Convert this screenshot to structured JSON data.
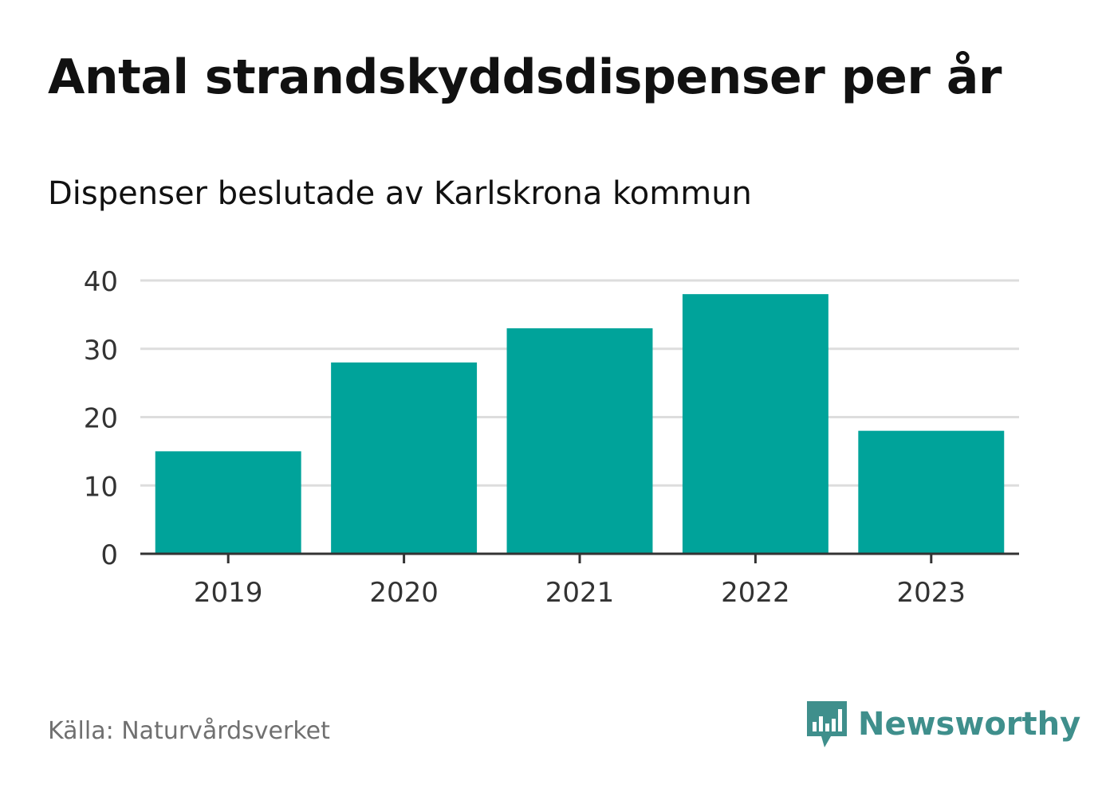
{
  "header": {
    "title": "Antal strandskyddsdispenser per år",
    "subtitle": "Dispenser beslutade av Karlskrona kommun"
  },
  "footer": {
    "source": "Källa: Naturvårdsverket",
    "brand_name": "Newsworthy",
    "brand_icon": "newsworthy-logo-icon",
    "brand_color": "#3f8f8c"
  },
  "colors": {
    "bar": "#00a39a",
    "grid": "#dddddd",
    "axis": "#333333",
    "tick_text": "#333333"
  },
  "chart_data": {
    "type": "bar",
    "title": "Antal strandskyddsdispenser per år",
    "subtitle": "Dispenser beslutade av Karlskrona kommun",
    "categories": [
      "2019",
      "2020",
      "2021",
      "2022",
      "2023"
    ],
    "values": [
      15,
      28,
      33,
      38,
      18
    ],
    "xlabel": "",
    "ylabel": "",
    "ylim": [
      0,
      40
    ],
    "yticks": [
      0,
      10,
      20,
      30,
      40
    ],
    "ytick_labels": [
      "0",
      "10",
      "20",
      "30",
      "40"
    ],
    "grid": true,
    "legend": "none"
  }
}
